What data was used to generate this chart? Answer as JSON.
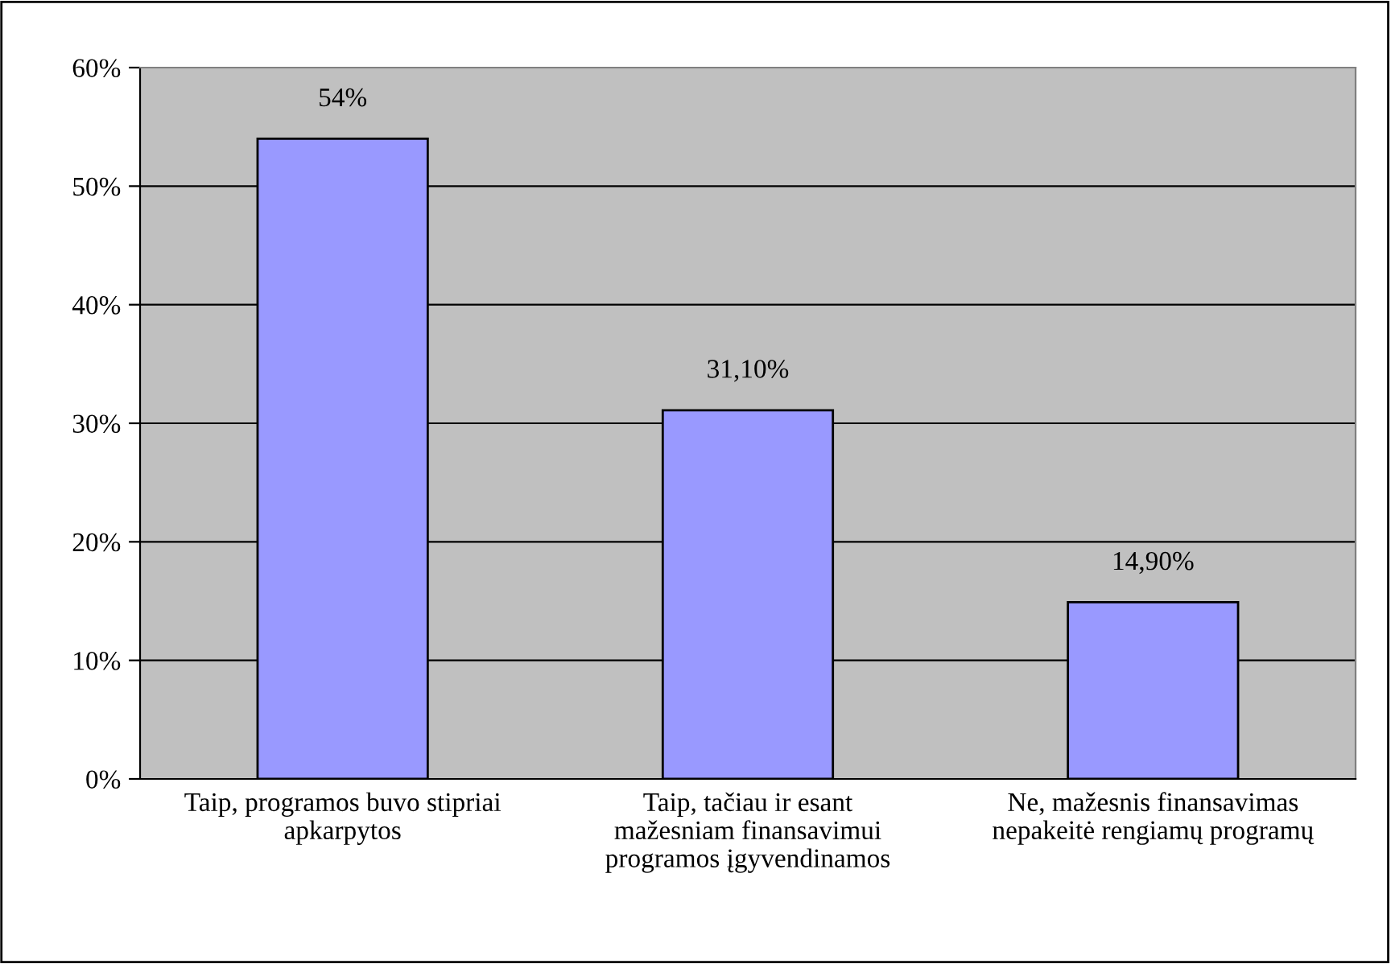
{
  "chart_data": {
    "type": "bar",
    "categories": [
      "Taip, programos buvo stipriai\napkarpytos",
      "Taip, tačiau ir esant\nmažesniam finansavimui\nprogramos įgyvendinamos",
      "Ne, mažesnis finansavimas\nnepakeitė rengiamų programų"
    ],
    "values": [
      54,
      31.1,
      14.9
    ],
    "value_labels": [
      "54%",
      "31,10%",
      "14,90%"
    ],
    "color": "#9999ff",
    "ylim": [
      0,
      60
    ],
    "yticks": [
      {
        "value": 0,
        "label": "0%"
      },
      {
        "value": 10,
        "label": "10%"
      },
      {
        "value": 20,
        "label": "20%"
      },
      {
        "value": 30,
        "label": "30%"
      },
      {
        "value": 40,
        "label": "40%"
      },
      {
        "value": 50,
        "label": "50%"
      },
      {
        "value": 60,
        "label": "60%"
      }
    ],
    "grid": "y"
  }
}
